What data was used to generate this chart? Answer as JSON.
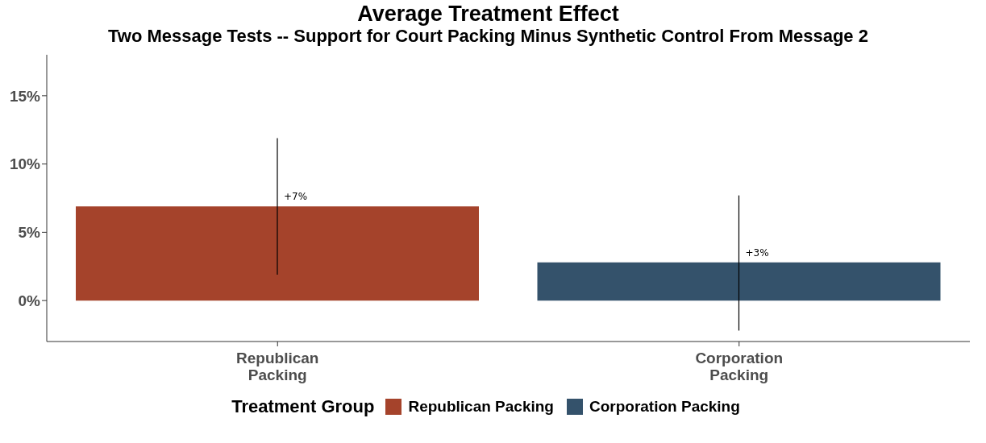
{
  "chart_data": {
    "type": "bar",
    "title": "Average Treatment Effect",
    "subtitle": "Two Message Tests -- Support for Court Packing Minus Synthetic Control From Message 2",
    "categories": [
      "Republican Packing",
      "Corporation Packing"
    ],
    "stacked": true,
    "series": [
      {
        "name": "Republican Packing",
        "color": "#a5432b",
        "values": [
          6.9,
          null
        ],
        "errors": [
          [
            1.9,
            11.9
          ],
          null
        ],
        "value_labels": [
          "+7%",
          null
        ]
      },
      {
        "name": "Corporation Packing",
        "color": "#34526b",
        "values": [
          null,
          2.8
        ],
        "errors": [
          null,
          [
            -2.2,
            7.7
          ]
        ],
        "value_labels": [
          null,
          "+3%"
        ]
      }
    ],
    "ylim": [
      -3,
      18
    ],
    "yticks": [
      {
        "value": 0,
        "label": "0%"
      },
      {
        "value": 5,
        "label": "5%"
      },
      {
        "value": 10,
        "label": "10%"
      },
      {
        "value": 15,
        "label": "15%"
      }
    ],
    "grid": false,
    "legend": "bottom",
    "legend_title": "Treatment Group"
  }
}
